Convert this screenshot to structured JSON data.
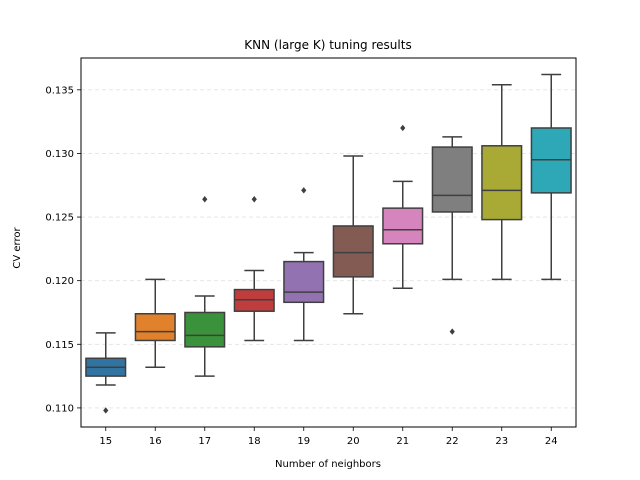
{
  "chart_data": {
    "type": "box",
    "title": "KNN (large K) tuning results",
    "xlabel": "Number of neighbors",
    "ylabel": "CV error",
    "ylim": [
      0.1085,
      0.1375
    ],
    "yticks": [
      "0.110",
      "0.115",
      "0.120",
      "0.125",
      "0.130",
      "0.135"
    ],
    "grid": "horizontal dashed",
    "categories": [
      "15",
      "16",
      "17",
      "18",
      "19",
      "20",
      "21",
      "22",
      "23",
      "24"
    ],
    "boxes": [
      {
        "x": "15",
        "whisker_low": 0.1118,
        "q1": 0.1125,
        "median": 0.1132,
        "q3": 0.1139,
        "whisker_high": 0.1159,
        "outliers": [
          0.1098
        ],
        "color": "#3274a1"
      },
      {
        "x": "16",
        "whisker_low": 0.1132,
        "q1": 0.1153,
        "median": 0.116,
        "q3": 0.1174,
        "whisker_high": 0.1201,
        "outliers": [],
        "color": "#e1812c"
      },
      {
        "x": "17",
        "whisker_low": 0.1125,
        "q1": 0.1148,
        "median": 0.1157,
        "q3": 0.1175,
        "whisker_high": 0.1188,
        "outliers": [
          0.1264
        ],
        "color": "#3a923a"
      },
      {
        "x": "18",
        "whisker_low": 0.1153,
        "q1": 0.1176,
        "median": 0.1185,
        "q3": 0.1193,
        "whisker_high": 0.1208,
        "outliers": [
          0.1264
        ],
        "color": "#c03d3e"
      },
      {
        "x": "19",
        "whisker_low": 0.1153,
        "q1": 0.1183,
        "median": 0.1191,
        "q3": 0.1215,
        "whisker_high": 0.1222,
        "outliers": [
          0.1271
        ],
        "color": "#9372b2"
      },
      {
        "x": "20",
        "whisker_low": 0.1174,
        "q1": 0.1203,
        "median": 0.1222,
        "q3": 0.1243,
        "whisker_high": 0.1298,
        "outliers": [],
        "color": "#845b53"
      },
      {
        "x": "21",
        "whisker_low": 0.1194,
        "q1": 0.1229,
        "median": 0.124,
        "q3": 0.1257,
        "whisker_high": 0.1278,
        "outliers": [
          0.132
        ],
        "color": "#d684bd"
      },
      {
        "x": "22",
        "whisker_low": 0.1201,
        "q1": 0.1254,
        "median": 0.1267,
        "q3": 0.1305,
        "whisker_high": 0.1313,
        "outliers": [
          0.116
        ],
        "color": "#7f7f7f"
      },
      {
        "x": "23",
        "whisker_low": 0.1201,
        "q1": 0.1248,
        "median": 0.1271,
        "q3": 0.1306,
        "whisker_high": 0.1354,
        "outliers": [],
        "color": "#a9aa35"
      },
      {
        "x": "24",
        "whisker_low": 0.1201,
        "q1": 0.1269,
        "median": 0.1295,
        "q3": 0.132,
        "whisker_high": 0.1362,
        "outliers": [],
        "color": "#2ea8b7"
      }
    ],
    "line_color": "#3f3f3f"
  }
}
